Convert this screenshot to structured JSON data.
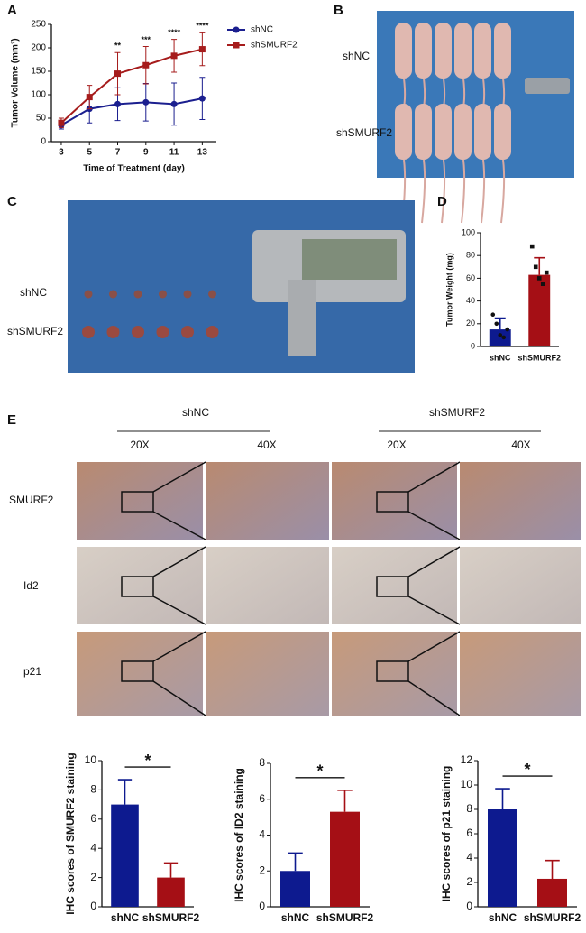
{
  "panels": {
    "letters": [
      "A",
      "B",
      "C",
      "D",
      "E"
    ],
    "b_groups": [
      "shNC",
      "shSMURF2"
    ],
    "c_groups": [
      "shNC",
      "shSMURF2"
    ],
    "e_groups": [
      "shNC",
      "shSMURF2"
    ],
    "e_mags": [
      "20X",
      "40X",
      "20X",
      "40X"
    ],
    "e_rows": [
      "SMURF2",
      "Id2",
      "p21"
    ]
  },
  "chart_data": [
    {
      "type": "line",
      "x_label": "Time of Treatment (day)",
      "y_label": "Tumor Volume (mm³)",
      "x": [
        3,
        5,
        7,
        9,
        11,
        13
      ],
      "xlim": [
        2.3,
        14
      ],
      "xticks": [
        3,
        5,
        7,
        9,
        11,
        13
      ],
      "ylim": [
        0,
        250
      ],
      "yticks": [
        0,
        50,
        100,
        150,
        200,
        250
      ],
      "legend": "right",
      "series": [
        {
          "name": "shNC",
          "color": "#1b1f8f",
          "marker": "circle",
          "values": [
            35,
            70,
            80,
            84,
            80,
            92
          ],
          "errors": [
            8,
            30,
            35,
            40,
            45,
            45
          ]
        },
        {
          "name": "shSMURF2",
          "color": "#a61c1c",
          "marker": "square",
          "values": [
            40,
            95,
            145,
            163,
            183,
            197
          ],
          "errors": [
            10,
            25,
            45,
            40,
            35,
            35
          ]
        }
      ],
      "annotations": [
        {
          "x": 7,
          "text": "**"
        },
        {
          "x": 9,
          "text": "***"
        },
        {
          "x": 11,
          "text": "****"
        },
        {
          "x": 13,
          "text": "****"
        }
      ]
    },
    {
      "type": "bar",
      "y_label": "Tumor Weight (mg)",
      "categories": [
        "shNC",
        "shSMURF2"
      ],
      "values": [
        15,
        63
      ],
      "errors": [
        10,
        15
      ],
      "colors": [
        "#0d1a8f",
        "#a50f15"
      ],
      "points": [
        [
          28,
          20,
          10,
          8,
          15
        ],
        [
          88,
          70,
          60,
          55,
          65
        ]
      ],
      "ylim": [
        0,
        100
      ],
      "yticks": [
        0,
        20,
        40,
        60,
        80,
        100
      ]
    },
    {
      "type": "bar",
      "y_label": "IHC scores of SMURF2 staining",
      "categories": [
        "shNC",
        "shSMURF2"
      ],
      "values": [
        7,
        2
      ],
      "errors": [
        1.7,
        1
      ],
      "colors": [
        "#0d1a8f",
        "#a50f15"
      ],
      "significance": "*",
      "ylim": [
        0,
        10
      ],
      "yticks": [
        0,
        2,
        4,
        6,
        8,
        10
      ]
    },
    {
      "type": "bar",
      "y_label": "IHC scores of ID2 staining",
      "categories": [
        "shNC",
        "shSMURF2"
      ],
      "values": [
        2,
        5.3
      ],
      "errors": [
        1,
        1.2
      ],
      "colors": [
        "#0d1a8f",
        "#a50f15"
      ],
      "significance": "*",
      "ylim": [
        0,
        8
      ],
      "yticks": [
        0,
        2,
        4,
        6,
        8
      ]
    },
    {
      "type": "bar",
      "y_label": "IHC scores of p21 staining",
      "categories": [
        "shNC",
        "shSMURF2"
      ],
      "values": [
        8,
        2.3
      ],
      "errors": [
        1.7,
        1.5
      ],
      "colors": [
        "#0d1a8f",
        "#a50f15"
      ],
      "significance": "*",
      "ylim": [
        0,
        12
      ],
      "yticks": [
        0,
        2,
        4,
        6,
        8,
        10,
        12
      ]
    }
  ]
}
